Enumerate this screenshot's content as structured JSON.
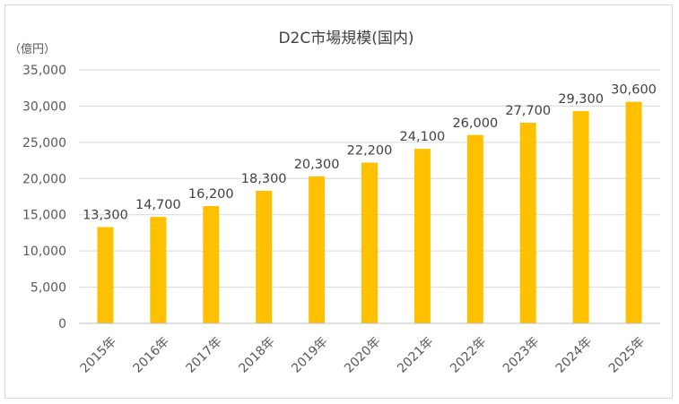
{
  "chart_data": {
    "type": "bar",
    "title": "D2C市場規模(国内)",
    "unit_label": "（億円）",
    "categories": [
      "2015年",
      "2016年",
      "2017年",
      "2018年",
      "2019年",
      "2020年",
      "2021年",
      "2022年",
      "2023年",
      "2024年",
      "2025年"
    ],
    "values": [
      13300,
      14700,
      16200,
      18300,
      20300,
      22200,
      24100,
      26000,
      27700,
      29300,
      30600
    ],
    "data_labels": [
      "13,300",
      "14,700",
      "16,200",
      "18,300",
      "20,300",
      "22,200",
      "24,100",
      "26,000",
      "27,700",
      "29,300",
      "30,600"
    ],
    "ylim": [
      0,
      35000
    ],
    "yticks": [
      0,
      5000,
      10000,
      15000,
      20000,
      25000,
      30000,
      35000
    ],
    "ytick_labels": [
      "0",
      "5,000",
      "10,000",
      "15,000",
      "20,000",
      "25,000",
      "30,000",
      "35,000"
    ],
    "xlabel": "",
    "ylabel": "",
    "grid": true,
    "legend": "none",
    "bar_color": "#ffc000"
  }
}
